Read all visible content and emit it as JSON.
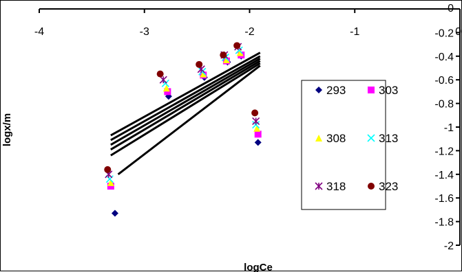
{
  "chart_data": {
    "type": "scatter",
    "title": "",
    "xlabel": "logCe",
    "ylabel": "logx/m",
    "xlim": [
      -4,
      0
    ],
    "ylim": [
      -2,
      0
    ],
    "x_ticks": [
      -4,
      -3,
      -2,
      -1,
      0
    ],
    "x_tick_labels": [
      "-4",
      "-3",
      "-2",
      "-1",
      "0"
    ],
    "y_ticks": [
      0,
      -0.2,
      -0.4,
      -0.6,
      -0.8,
      -1,
      -1.2,
      -1.4,
      -1.6,
      -1.8,
      -2
    ],
    "y_tick_labels": [
      "0",
      "-0.2",
      "-0.4",
      "-0.6",
      "-0.8",
      "-1",
      "-1.2",
      "-1.4",
      "-1.6",
      "-1.8",
      "-2"
    ],
    "grid": false,
    "legend_position": "right",
    "series": [
      {
        "name": "293",
        "marker": "diamond",
        "color": "#000080",
        "x": [
          -3.28,
          -2.77,
          -2.43,
          -2.21,
          -2.08,
          -1.92
        ],
        "y": [
          -1.73,
          -0.74,
          -0.58,
          -0.45,
          -0.4,
          -1.13
        ]
      },
      {
        "name": "303",
        "marker": "square",
        "color": "#ff00ff",
        "x": [
          -3.32,
          -2.78,
          -2.44,
          -2.22,
          -2.08,
          -1.92
        ],
        "y": [
          -1.5,
          -0.7,
          -0.56,
          -0.44,
          -0.39,
          -1.06
        ]
      },
      {
        "name": "308",
        "marker": "triangle",
        "color": "#ffff00",
        "x": [
          -3.32,
          -2.79,
          -2.44,
          -2.22,
          -2.09,
          -1.93
        ],
        "y": [
          -1.47,
          -0.67,
          -0.55,
          -0.43,
          -0.37,
          -1.01
        ]
      },
      {
        "name": "313",
        "marker": "x",
        "color": "#00ffff",
        "x": [
          -3.33,
          -2.8,
          -2.45,
          -2.23,
          -2.1,
          -1.94
        ],
        "y": [
          -1.44,
          -0.63,
          -0.53,
          -0.41,
          -0.35,
          -0.98
        ]
      },
      {
        "name": "318",
        "marker": "star",
        "color": "#800080",
        "x": [
          -3.34,
          -2.82,
          -2.46,
          -2.24,
          -2.11,
          -1.94
        ],
        "y": [
          -1.4,
          -0.6,
          -0.51,
          -0.39,
          -0.32,
          -0.95
        ]
      },
      {
        "name": "323",
        "marker": "circle",
        "color": "#800000",
        "x": [
          -3.35,
          -2.85,
          -2.48,
          -2.25,
          -2.12,
          -1.95
        ],
        "y": [
          -1.36,
          -0.55,
          -0.47,
          -0.39,
          -0.31,
          -0.88
        ]
      }
    ],
    "fit_lines": [
      {
        "x": [
          -3.32,
          -1.9
        ],
        "y": [
          -1.07,
          -0.37
        ]
      },
      {
        "x": [
          -3.32,
          -1.9
        ],
        "y": [
          -1.11,
          -0.4
        ]
      },
      {
        "x": [
          -3.32,
          -1.9
        ],
        "y": [
          -1.15,
          -0.42
        ]
      },
      {
        "x": [
          -3.32,
          -1.9
        ],
        "y": [
          -1.19,
          -0.44
        ]
      },
      {
        "x": [
          -3.32,
          -1.9
        ],
        "y": [
          -1.24,
          -0.46
        ]
      },
      {
        "x": [
          -3.25,
          -1.9
        ],
        "y": [
          -1.4,
          -0.48
        ]
      }
    ],
    "fit_line_color": "#000000"
  }
}
